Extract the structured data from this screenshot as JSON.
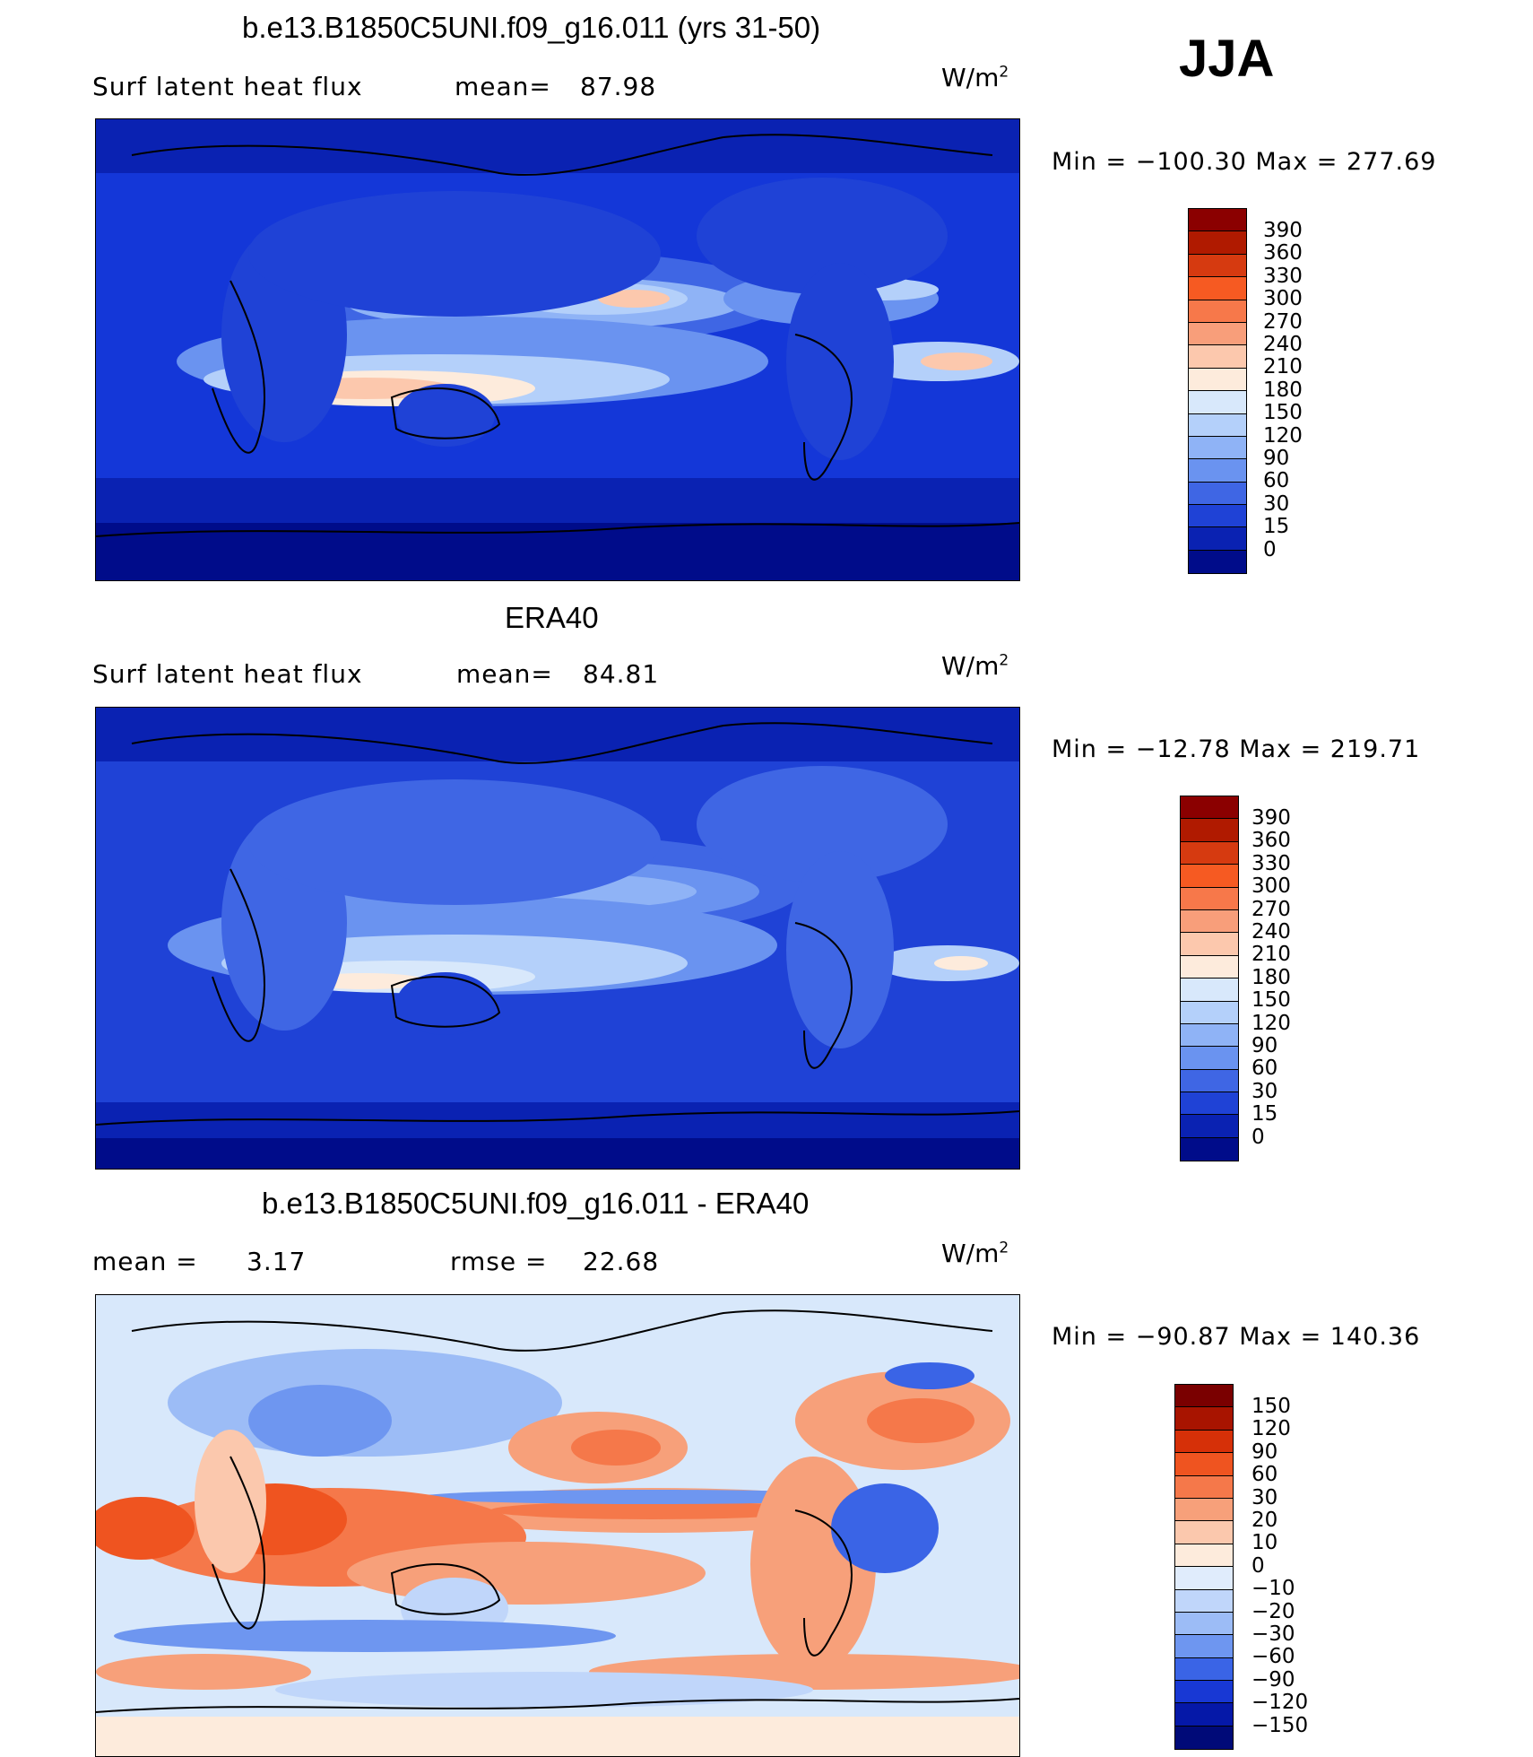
{
  "season": "JJA",
  "units": {
    "base": "W/m",
    "exp": "2"
  },
  "panel1": {
    "title": "b.e13.B1850C5UNI.f09_g16.011 (yrs 31-50)",
    "variable": "Surf  latent  heat  flux",
    "mean_label": "mean=",
    "mean_value": "87.98",
    "minmax": "Min  =  −100.30  Max  =  277.69"
  },
  "panel2": {
    "title": "ERA40",
    "variable": "Surf  latent  heat  flux",
    "mean_label": "mean=",
    "mean_value": "84.81",
    "minmax": "Min  =  −12.78  Max  =  219.71"
  },
  "panel3": {
    "title": "b.e13.B1850C5UNI.f09_g16.011 - ERA40",
    "mean_label": "mean  =",
    "mean_value": "3.17",
    "rmse_label": "rmse  =",
    "rmse_value": "22.68",
    "minmax": "Min  =  −90.87  Max  =  140.36"
  },
  "colorbar_abs": {
    "levels": [
      "390",
      "360",
      "330",
      "300",
      "270",
      "240",
      "210",
      "180",
      "150",
      "120",
      "90",
      "60",
      "30",
      "15",
      "0"
    ],
    "colors": [
      "#8b0000",
      "#b01a00",
      "#d63a10",
      "#f65a22",
      "#f7784a",
      "#f89e7a",
      "#fcc8ad",
      "#fdebdc",
      "#d8e8fb",
      "#b4d0fa",
      "#8fb3f6",
      "#6a93f0",
      "#3f66e4",
      "#1f42d6",
      "#0a22b2",
      "#000c8a"
    ]
  },
  "colorbar_diff": {
    "levels": [
      "150",
      "120",
      "90",
      "60",
      "30",
      "20",
      "10",
      "0",
      "−10",
      "−20",
      "−30",
      "−60",
      "−90",
      "−120",
      "−150"
    ],
    "colors": [
      "#7a0000",
      "#a81400",
      "#d63008",
      "#ef5420",
      "#f5784a",
      "#f7a07a",
      "#fbc8ad",
      "#fdebdc",
      "#e0ecfc",
      "#c0d6fa",
      "#9cbcf6",
      "#6e96f0",
      "#3a64e6",
      "#1838d4",
      "#0518a8",
      "#000a78"
    ]
  }
}
